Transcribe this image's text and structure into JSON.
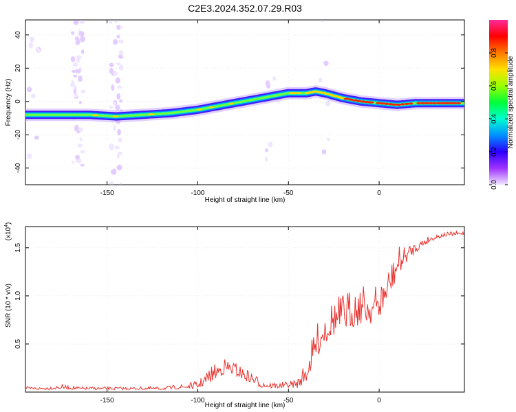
{
  "title": "C2E3.2024.352.07.29.R03",
  "chart_data": [
    {
      "type": "heatmap",
      "xlabel": "Height of straight line (km)",
      "ylabel": "Frequency (Hz)",
      "xlim": [
        -195,
        47
      ],
      "ylim": [
        -50,
        49
      ],
      "x_ticks": [
        -150,
        -100,
        -50,
        0
      ],
      "x_tick_labels": [
        "-150",
        "-100",
        "-50",
        "0"
      ],
      "y_ticks": [
        -40,
        -20,
        0,
        20,
        40
      ],
      "y_tick_labels": [
        "-40",
        "-20",
        "0",
        "20",
        "40"
      ],
      "grid": true,
      "colorbar": {
        "label": "Normalized spectral amplitude",
        "range": [
          0,
          1
        ],
        "ticks": [
          0.0,
          0.2,
          0.4,
          0.6,
          0.8
        ],
        "tick_labels": [
          "0.0",
          "0.2",
          "0.4",
          "0.6",
          "0.8"
        ],
        "colors": [
          "#f0e6ff",
          "#9f32ff",
          "#2c00ff",
          "#0090ff",
          "#00ffd0",
          "#00ff38",
          "#9cff00",
          "#ffe000",
          "#ff7a00",
          "#ff0000",
          "#ff2a9a"
        ]
      },
      "ridge": {
        "x": [
          -195,
          -180,
          -160,
          -145,
          -130,
          -115,
          -100,
          -90,
          -80,
          -70,
          -60,
          -50,
          -45,
          -40,
          -35,
          -30,
          -20,
          -10,
          0,
          10,
          20,
          30,
          40,
          47
        ],
        "y": [
          -8,
          -8,
          -8,
          -9,
          -8,
          -7,
          -5,
          -3,
          -1,
          1,
          3,
          5,
          5,
          5,
          6,
          5,
          2,
          0,
          -1,
          -2,
          -1,
          -1,
          -1,
          -1
        ]
      }
    },
    {
      "type": "line",
      "xlabel": "Height of straight line (km)",
      "ylabel": "SNR (10 * v/v)",
      "y_multiplier_label": "(x10",
      "y_multiplier_exp": "4",
      "y_multiplier_close": ")",
      "xlim": [
        -195,
        47
      ],
      "ylim": [
        0,
        1.72
      ],
      "x_ticks": [
        -150,
        -100,
        -50,
        0
      ],
      "x_tick_labels": [
        "-150",
        "-100",
        "-50",
        "0"
      ],
      "y_ticks": [
        0.5,
        1.0,
        1.5
      ],
      "y_tick_labels": [
        "0.5",
        "1.0",
        "1.5"
      ],
      "grid": true,
      "series": [
        {
          "color": "#e8302c",
          "envelope_x": [
            -195,
            -185,
            -175,
            -165,
            -150,
            -135,
            -120,
            -110,
            -100,
            -95,
            -90,
            -85,
            -80,
            -75,
            -70,
            -65,
            -60,
            -55,
            -50,
            -45,
            -40,
            -35,
            -30,
            -25,
            -20,
            -15,
            -10,
            -5,
            0,
            5,
            10,
            15,
            20,
            25,
            30,
            35,
            40,
            47
          ],
          "envelope_y": [
            0.05,
            0.05,
            0.07,
            0.05,
            0.05,
            0.05,
            0.05,
            0.07,
            0.1,
            0.2,
            0.28,
            0.33,
            0.3,
            0.24,
            0.19,
            0.12,
            0.1,
            0.09,
            0.1,
            0.13,
            0.3,
            0.62,
            0.82,
            0.93,
            0.97,
            1.03,
            1.07,
            1.03,
            1.07,
            1.25,
            1.45,
            1.5,
            1.55,
            1.6,
            1.63,
            1.65,
            1.66,
            1.67
          ],
          "noise_amplitude": [
            0.02,
            0.02,
            0.03,
            0.02,
            0.02,
            0.02,
            0.02,
            0.03,
            0.05,
            0.1,
            0.11,
            0.11,
            0.1,
            0.09,
            0.08,
            0.06,
            0.05,
            0.04,
            0.04,
            0.07,
            0.15,
            0.22,
            0.25,
            0.27,
            0.28,
            0.28,
            0.28,
            0.25,
            0.25,
            0.25,
            0.2,
            0.12,
            0.08,
            0.06,
            0.04,
            0.03,
            0.03,
            0.03
          ]
        }
      ]
    }
  ]
}
